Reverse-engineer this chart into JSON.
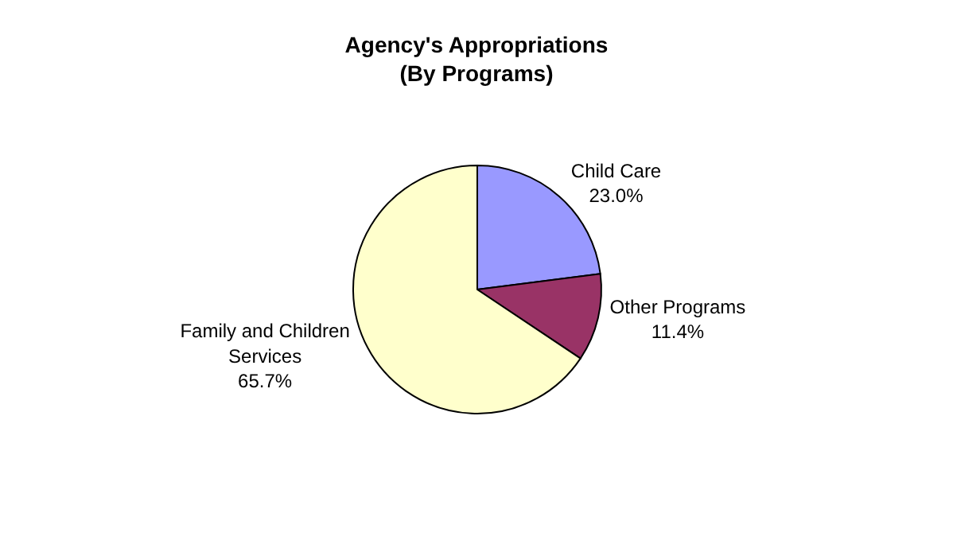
{
  "chart_data": {
    "type": "pie",
    "title": "Agency's Appropriations\n(By Programs)",
    "categories": [
      "Child Care",
      "Other Programs",
      "Family and Children Services"
    ],
    "values": [
      23.0,
      11.4,
      65.7
    ],
    "value_labels": [
      "23.0%",
      "11.4%",
      "65.7%"
    ],
    "colors": [
      "#9999ff",
      "#993366",
      "#ffffcc"
    ],
    "legend": false
  }
}
